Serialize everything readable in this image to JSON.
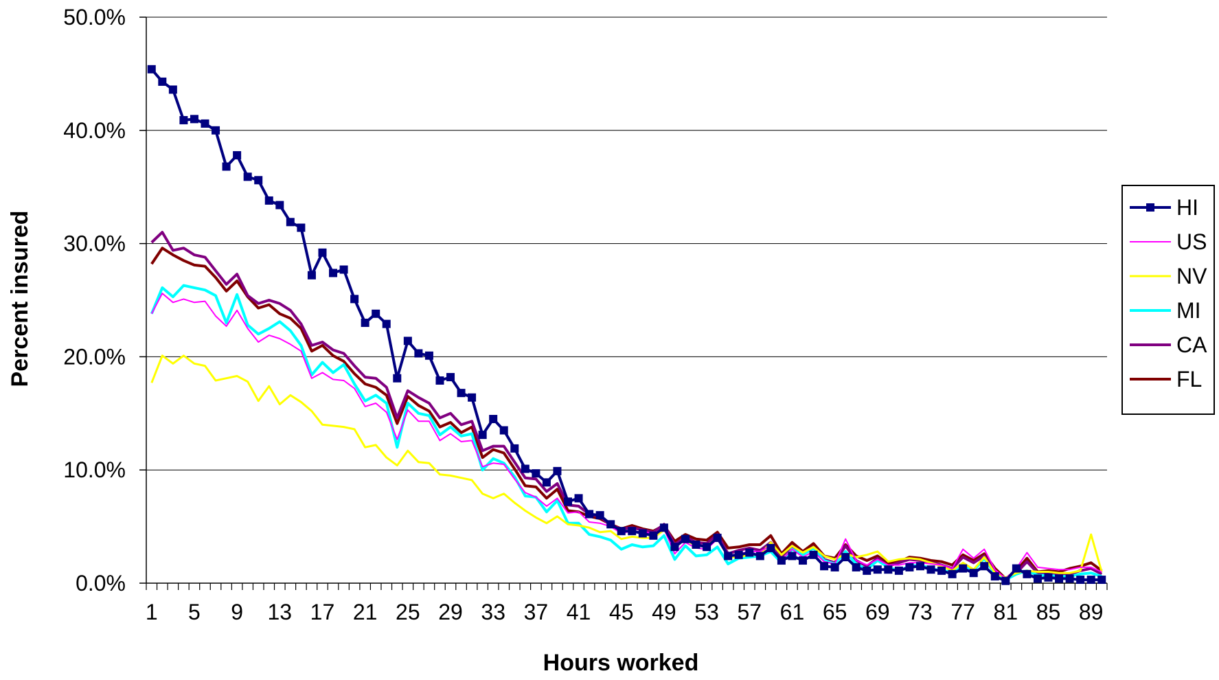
{
  "chart_data": {
    "type": "line",
    "xlabel": "Hours worked",
    "ylabel": "Percent insured",
    "ylim": [
      0,
      50
    ],
    "xlim": [
      1,
      90
    ],
    "y_ticks": [
      "0.0%",
      "10.0%",
      "20.0%",
      "30.0%",
      "40.0%",
      "50.0%"
    ],
    "y_tick_values": [
      0,
      10,
      20,
      30,
      40,
      50
    ],
    "x_tick_labels": [
      "1",
      "5",
      "9",
      "13",
      "17",
      "21",
      "25",
      "29",
      "33",
      "37",
      "41",
      "45",
      "49",
      "53",
      "57",
      "61",
      "65",
      "69",
      "73",
      "77",
      "81",
      "85",
      "89"
    ],
    "x_tick_values": [
      1,
      5,
      9,
      13,
      17,
      21,
      25,
      29,
      33,
      37,
      41,
      45,
      49,
      53,
      57,
      61,
      65,
      69,
      73,
      77,
      81,
      85,
      89
    ],
    "grid": true,
    "legend": "right",
    "x": [
      1,
      2,
      3,
      4,
      5,
      6,
      7,
      8,
      9,
      10,
      11,
      12,
      13,
      14,
      15,
      16,
      17,
      18,
      19,
      20,
      21,
      22,
      23,
      24,
      25,
      26,
      27,
      28,
      29,
      30,
      31,
      32,
      33,
      34,
      35,
      36,
      37,
      38,
      39,
      40,
      41,
      42,
      43,
      44,
      45,
      46,
      47,
      48,
      49,
      50,
      51,
      52,
      53,
      54,
      55,
      56,
      57,
      58,
      59,
      60,
      61,
      62,
      63,
      64,
      65,
      66,
      67,
      68,
      69,
      70,
      71,
      72,
      73,
      74,
      75,
      76,
      77,
      78,
      79,
      80,
      81,
      82,
      83,
      84,
      85,
      86,
      87,
      88,
      89,
      90
    ],
    "series": [
      {
        "name": "HI",
        "color": "#000080",
        "marker": true,
        "width": 4,
        "values": [
          45.4,
          44.3,
          43.6,
          40.9,
          41.0,
          40.6,
          40.0,
          36.8,
          37.8,
          35.9,
          35.6,
          33.8,
          33.4,
          31.9,
          31.4,
          27.2,
          29.2,
          27.4,
          27.7,
          25.1,
          23.0,
          23.8,
          22.9,
          18.1,
          21.4,
          20.3,
          20.1,
          17.9,
          18.2,
          16.8,
          16.4,
          13.1,
          14.5,
          13.5,
          11.9,
          10.1,
          9.7,
          8.9,
          9.9,
          7.2,
          7.5,
          6.1,
          6.0,
          5.2,
          4.6,
          4.6,
          4.4,
          4.2,
          4.9,
          3.2,
          3.9,
          3.4,
          3.2,
          4.0,
          2.4,
          2.5,
          2.7,
          2.4,
          3.1,
          2.0,
          2.4,
          2.0,
          2.5,
          1.5,
          1.4,
          2.3,
          1.4,
          1.1,
          1.2,
          1.2,
          1.1,
          1.4,
          1.5,
          1.2,
          1.1,
          0.8,
          1.3,
          0.9,
          1.5,
          0.6,
          0.2,
          1.3,
          0.8,
          0.4,
          0.5,
          0.4,
          0.4,
          0.3,
          0.3,
          0.3
        ]
      },
      {
        "name": "US",
        "color": "#ff00ff",
        "marker": false,
        "width": 2,
        "values": [
          23.8,
          25.6,
          24.8,
          25.1,
          24.8,
          24.9,
          23.6,
          22.7,
          24.1,
          22.5,
          21.3,
          21.9,
          21.6,
          21.1,
          20.5,
          18.1,
          18.6,
          18.0,
          17.9,
          17.2,
          15.6,
          15.9,
          15.1,
          12.7,
          15.3,
          14.3,
          14.3,
          12.6,
          13.2,
          12.5,
          12.6,
          10.3,
          10.6,
          10.5,
          9.2,
          8.0,
          7.6,
          6.8,
          7.5,
          6.2,
          6.3,
          5.4,
          5.3,
          5.0,
          4.4,
          4.6,
          4.5,
          4.4,
          4.8,
          2.6,
          3.6,
          3.1,
          3.0,
          3.9,
          2.3,
          2.6,
          2.8,
          2.8,
          3.3,
          2.0,
          3.0,
          2.3,
          2.8,
          1.9,
          1.7,
          3.9,
          2.0,
          1.6,
          2.1,
          1.6,
          1.6,
          1.8,
          1.8,
          1.7,
          1.6,
          1.3,
          3.0,
          2.2,
          3.0,
          1.2,
          0.4,
          1.3,
          2.7,
          1.4,
          1.3,
          1.2,
          1.2,
          1.4,
          1.4,
          1.0
        ]
      },
      {
        "name": "NV",
        "color": "#ffff00",
        "marker": false,
        "width": 3,
        "values": [
          17.7,
          20.1,
          19.4,
          20.1,
          19.4,
          19.2,
          17.9,
          18.1,
          18.3,
          17.8,
          16.1,
          17.4,
          15.8,
          16.6,
          16.0,
          15.2,
          14.0,
          13.9,
          13.8,
          13.6,
          12.0,
          12.2,
          11.1,
          10.4,
          11.7,
          10.7,
          10.6,
          9.6,
          9.5,
          9.3,
          9.1,
          7.9,
          7.5,
          7.9,
          7.1,
          6.4,
          5.8,
          5.3,
          5.9,
          5.2,
          5.1,
          4.9,
          4.5,
          4.6,
          3.9,
          4.1,
          4.0,
          4.0,
          4.7,
          3.3,
          3.8,
          3.3,
          3.3,
          4.0,
          2.3,
          2.3,
          2.5,
          2.5,
          3.6,
          2.5,
          3.3,
          2.7,
          3.2,
          2.4,
          2.1,
          2.6,
          2.3,
          2.5,
          2.8,
          1.9,
          2.1,
          2.2,
          2.1,
          1.8,
          1.5,
          1.1,
          1.8,
          1.2,
          2.3,
          0.9,
          0.5,
          0.9,
          1.1,
          1.0,
          1.0,
          0.9,
          0.9,
          1.1,
          4.3,
          1.0
        ]
      },
      {
        "name": "MI",
        "color": "#00ffff",
        "marker": false,
        "width": 4,
        "values": [
          23.8,
          26.1,
          25.3,
          26.3,
          26.1,
          25.9,
          25.4,
          23.0,
          25.5,
          22.8,
          22.0,
          22.5,
          23.1,
          22.3,
          21.0,
          18.4,
          19.5,
          18.6,
          19.3,
          17.6,
          16.1,
          16.6,
          15.9,
          12.0,
          15.9,
          15.0,
          14.8,
          13.1,
          13.8,
          13.0,
          13.2,
          10.0,
          11.0,
          10.6,
          9.4,
          7.7,
          7.6,
          6.3,
          7.3,
          5.3,
          5.3,
          4.3,
          4.1,
          3.8,
          3.0,
          3.4,
          3.2,
          3.3,
          4.2,
          2.1,
          3.3,
          2.4,
          2.5,
          3.2,
          1.7,
          2.2,
          2.3,
          2.4,
          2.8,
          1.8,
          3.0,
          2.5,
          3.1,
          2.0,
          1.7,
          2.8,
          1.7,
          1.2,
          2.0,
          1.4,
          1.1,
          1.5,
          1.6,
          1.3,
          1.1,
          1.0,
          1.6,
          1.1,
          2.2,
          0.8,
          0.3,
          0.8,
          1.1,
          0.7,
          0.7,
          0.6,
          0.6,
          0.8,
          0.9,
          0.6
        ]
      },
      {
        "name": "CA",
        "color": "#800080",
        "marker": false,
        "width": 4,
        "values": [
          30.1,
          31.0,
          29.4,
          29.6,
          29.0,
          28.8,
          27.6,
          26.4,
          27.3,
          25.4,
          24.7,
          25.0,
          24.7,
          24.1,
          22.9,
          21.0,
          21.3,
          20.6,
          20.3,
          19.2,
          18.2,
          18.1,
          17.3,
          14.6,
          17.0,
          16.4,
          15.9,
          14.6,
          15.0,
          14.0,
          14.3,
          11.7,
          12.1,
          12.1,
          10.7,
          9.3,
          9.2,
          8.1,
          8.8,
          6.9,
          6.8,
          6.1,
          5.9,
          5.1,
          4.8,
          4.9,
          4.7,
          4.5,
          5.2,
          3.4,
          4.1,
          3.6,
          3.5,
          4.3,
          2.6,
          2.9,
          3.1,
          2.9,
          3.6,
          2.3,
          3.3,
          2.6,
          3.2,
          2.1,
          1.8,
          3.3,
          2.0,
          1.5,
          2.2,
          1.5,
          1.8,
          2.1,
          2.0,
          1.8,
          1.6,
          1.3,
          2.3,
          1.8,
          2.4,
          1.0,
          0.3,
          0.9,
          1.9,
          0.9,
          0.9,
          0.8,
          0.8,
          1.1,
          1.3,
          0.8
        ]
      },
      {
        "name": "FL",
        "color": "#800000",
        "marker": false,
        "width": 4,
        "values": [
          28.2,
          29.6,
          29.0,
          28.5,
          28.1,
          28.0,
          27.0,
          25.8,
          26.7,
          25.3,
          24.3,
          24.6,
          23.8,
          23.4,
          22.5,
          20.5,
          21.0,
          20.1,
          19.6,
          18.5,
          17.6,
          17.3,
          16.6,
          14.1,
          16.5,
          15.7,
          15.2,
          13.8,
          14.2,
          13.3,
          13.8,
          11.1,
          11.8,
          11.5,
          10.1,
          8.6,
          8.5,
          7.5,
          8.3,
          6.4,
          6.3,
          5.9,
          5.7,
          5.2,
          4.8,
          5.1,
          4.8,
          4.6,
          5.1,
          3.7,
          4.3,
          3.9,
          3.8,
          4.5,
          3.1,
          3.2,
          3.4,
          3.4,
          4.2,
          2.6,
          3.6,
          2.8,
          3.5,
          2.4,
          2.2,
          3.4,
          2.4,
          2.0,
          2.4,
          1.7,
          1.9,
          2.3,
          2.2,
          2.0,
          1.9,
          1.6,
          2.5,
          2.0,
          2.6,
          1.3,
          0.4,
          1.1,
          2.2,
          1.0,
          1.1,
          1.0,
          1.3,
          1.5,
          1.8,
          1.1
        ]
      }
    ]
  }
}
